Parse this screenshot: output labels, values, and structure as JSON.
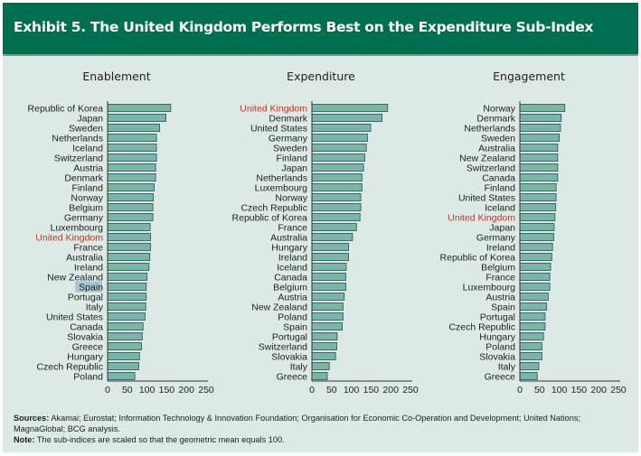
{
  "title": "Exhibit 5. The United Kingdom Performs Best on the Expenditure Sub-Index",
  "chart_data": [
    {
      "type": "bar",
      "orientation": "horizontal",
      "title": "Enablement",
      "highlight": "United Kingdom",
      "selected_label": "Spain",
      "xlim": [
        0,
        250
      ],
      "xticks": [
        0,
        50,
        100,
        150,
        200,
        250
      ],
      "categories": [
        "Republic of Korea",
        "Japan",
        "Sweden",
        "Netherlands",
        "Iceland",
        "Switzerland",
        "Austria",
        "Denmark",
        "Finland",
        "Norway",
        "Belgium",
        "Germany",
        "Luxembourg",
        "United Kingdom",
        "France",
        "Australia",
        "Ireland",
        "New Zealand",
        "Spain",
        "Portugal",
        "Italy",
        "United States",
        "Canada",
        "Slovakia",
        "Greece",
        "Hungary",
        "Czech Republic",
        "Poland"
      ],
      "values": [
        160,
        148,
        132,
        124,
        124,
        124,
        122,
        122,
        118,
        116,
        115,
        115,
        108,
        109,
        109,
        107,
        105,
        100,
        98,
        98,
        97,
        95,
        90,
        88,
        86,
        81,
        79,
        69
      ]
    },
    {
      "type": "bar",
      "orientation": "horizontal",
      "title": "Expenditure",
      "highlight": "United Kingdom",
      "xlim": [
        0,
        250
      ],
      "xticks": [
        0,
        50,
        100,
        150,
        200,
        250
      ],
      "categories": [
        "United Kingdom",
        "Denmark",
        "United States",
        "Germany",
        "Sweden",
        "Finland",
        "Japan",
        "Netherlands",
        "Luxembourg",
        "Norway",
        "Czech Republic",
        "Republic of Korea",
        "France",
        "Australia",
        "Hungary",
        "Ireland",
        "Iceland",
        "Canada",
        "Belgium",
        "Austria",
        "New Zealand",
        "Poland",
        "Spain",
        "Portugal",
        "Switzerland",
        "Slovakia",
        "Italy",
        "Greece"
      ],
      "values": [
        192,
        178,
        149,
        141,
        138,
        134,
        131,
        127,
        127,
        124,
        124,
        122,
        113,
        103,
        93,
        93,
        87,
        86,
        86,
        82,
        79,
        79,
        77,
        64,
        63,
        60,
        44,
        39
      ]
    },
    {
      "type": "bar",
      "orientation": "horizontal",
      "title": "Engagement",
      "highlight": "United Kingdom",
      "xlim": [
        0,
        250
      ],
      "xticks": [
        0,
        50,
        100,
        150,
        200,
        250
      ],
      "categories": [
        "Norway",
        "Denmark",
        "Netherlands",
        "Sweden",
        "Australia",
        "New Zealand",
        "Switzerland",
        "Canada",
        "Finland",
        "United States",
        "Iceland",
        "United Kingdom",
        "Japan",
        "Germany",
        "Ireland",
        "Republic of Korea",
        "Belgium",
        "France",
        "Luxembourg",
        "Austria",
        "Spain",
        "Portugal",
        "Czech Republic",
        "Hungary",
        "Poland",
        "Slovakia",
        "Italy",
        "Greece"
      ],
      "values": [
        114,
        105,
        103,
        100,
        96,
        96,
        96,
        96,
        92,
        92,
        91,
        89,
        87,
        86,
        83,
        81,
        78,
        76,
        76,
        72,
        68,
        64,
        64,
        60,
        56,
        56,
        48,
        44
      ]
    }
  ],
  "footer": {
    "sources_label": "Sources:",
    "sources_text": " Akamai; Eurostat; Information Technology & Innovation Foundation; Organisation for Economic Co-Operation and Development; United Nations; MagnaGlobal; BCG analysis.",
    "note_label": "Note:",
    "note_text": " The sub-indices are scaled so that the geometric mean equals 100."
  },
  "colors": {
    "header": "#006f51",
    "background": "#dce9e5",
    "bar_fill": "#7db5a5",
    "bar_stroke": "#2d5f6b",
    "highlight_text": "#c0392b",
    "selection": "#a7c5d6"
  }
}
